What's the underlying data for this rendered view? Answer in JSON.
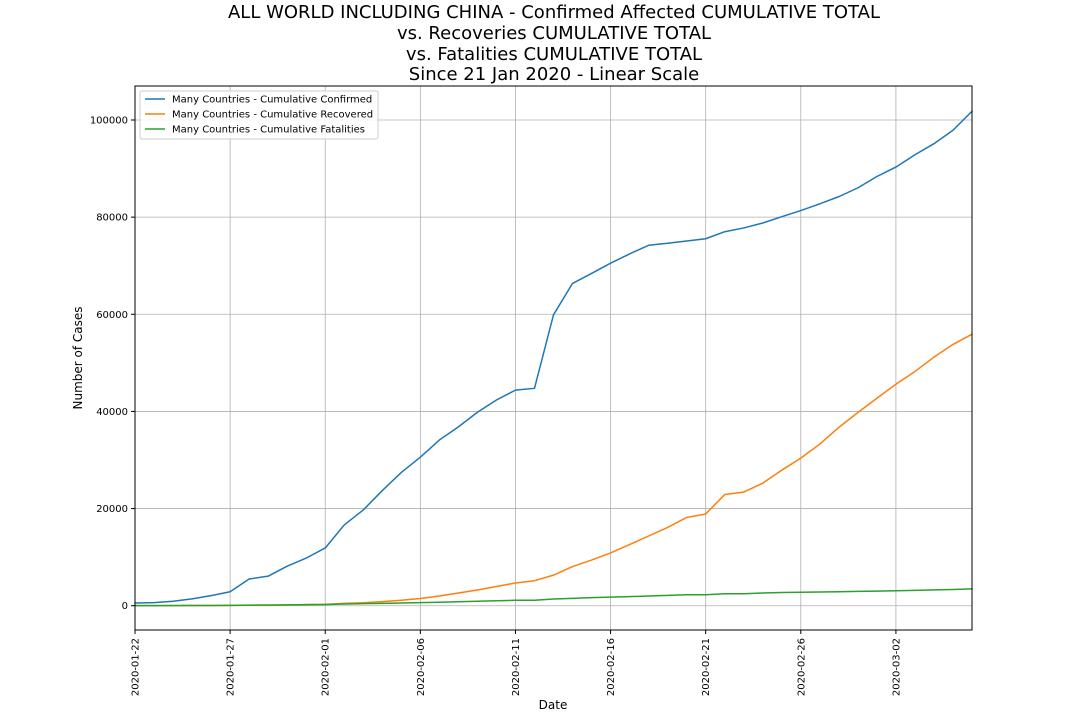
{
  "chart_data": {
    "type": "line",
    "title_lines": [
      "ALL WORLD INCLUDING CHINA - Confirmed Affected CUMULATIVE TOTAL",
      "vs. Recoveries CUMULATIVE TOTAL",
      "vs. Fatalities CUMULATIVE TOTAL",
      "Since 21 Jan 2020 - Linear Scale"
    ],
    "xlabel": "Date",
    "ylabel": "Number of Cases",
    "x_start": "2020-01-22",
    "x_tick_labels": [
      "2020-01-22",
      "2020-01-27",
      "2020-02-01",
      "2020-02-06",
      "2020-02-11",
      "2020-02-16",
      "2020-02-21",
      "2020-02-26",
      "2020-03-02"
    ],
    "y_ticks": [
      0,
      20000,
      40000,
      60000,
      80000,
      100000
    ],
    "ylim": [
      -5000,
      107000
    ],
    "xlim_days": [
      0,
      44
    ],
    "grid": true,
    "legend_position": "upper left",
    "series": [
      {
        "name": "Many Countries - Cumulative Confirmed",
        "color": "#1f77b4",
        "values": [
          548,
          643,
          920,
          1406,
          2075,
          2877,
          5509,
          6087,
          8141,
          9802,
          11891,
          16630,
          19716,
          23707,
          27440,
          30587,
          34110,
          36814,
          39829,
          42354,
          44386,
          44759,
          59895,
          66358,
          68413,
          70513,
          72434,
          74211,
          74619,
          75077,
          75550,
          77001,
          77779,
          78799,
          80088,
          81353,
          82754,
          84225,
          86025,
          88369,
          90306,
          92840,
          95120,
          97886,
          101800
        ]
      },
      {
        "name": "Many Countries - Cumulative Recovered",
        "color": "#ff7f0e",
        "values": [
          28,
          30,
          36,
          39,
          52,
          61,
          107,
          126,
          143,
          222,
          284,
          472,
          623,
          852,
          1124,
          1487,
          2011,
          2616,
          3244,
          3946,
          4683,
          5150,
          6295,
          8058,
          9395,
          10865,
          12583,
          14352,
          16121,
          18177,
          18890,
          22886,
          23394,
          25227,
          27905,
          30384,
          33277,
          36711,
          39782,
          42716,
          45602,
          48228,
          51170,
          53796,
          55900
        ]
      },
      {
        "name": "Many Countries - Cumulative Fatalities",
        "color": "#2ca02c",
        "values": [
          17,
          18,
          26,
          42,
          56,
          82,
          131,
          133,
          171,
          213,
          259,
          362,
          426,
          492,
          564,
          634,
          719,
          806,
          906,
          1013,
          1113,
          1118,
          1371,
          1523,
          1666,
          1770,
          1868,
          2007,
          2122,
          2247,
          2251,
          2458,
          2469,
          2629,
          2708,
          2770,
          2814,
          2872,
          2941,
          2996,
          3085,
          3160,
          3254,
          3348,
          3460
        ]
      }
    ]
  }
}
